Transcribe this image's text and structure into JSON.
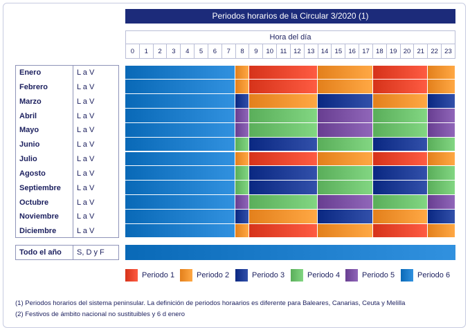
{
  "title": "Periodos horarios de la Circular 3/2020 (1)",
  "hour_label": "Hora del día",
  "hours": [
    "0",
    "1",
    "2",
    "3",
    "4",
    "5",
    "6",
    "7",
    "8",
    "9",
    "10",
    "11",
    "12",
    "13",
    "14",
    "15",
    "16",
    "17",
    "18",
    "19",
    "20",
    "21",
    "22",
    "23"
  ],
  "months": [
    {
      "name": "Enero",
      "days": "L a V",
      "periods": [
        6,
        6,
        6,
        6,
        6,
        6,
        6,
        6,
        2,
        1,
        1,
        1,
        1,
        1,
        2,
        2,
        2,
        2,
        1,
        1,
        1,
        1,
        2,
        2
      ]
    },
    {
      "name": "Febrero",
      "days": "L a V",
      "periods": [
        6,
        6,
        6,
        6,
        6,
        6,
        6,
        6,
        2,
        1,
        1,
        1,
        1,
        1,
        2,
        2,
        2,
        2,
        1,
        1,
        1,
        1,
        2,
        2
      ]
    },
    {
      "name": "Marzo",
      "days": "L a V",
      "periods": [
        6,
        6,
        6,
        6,
        6,
        6,
        6,
        6,
        3,
        2,
        2,
        2,
        2,
        2,
        3,
        3,
        3,
        3,
        2,
        2,
        2,
        2,
        3,
        3
      ]
    },
    {
      "name": "Abril",
      "days": "L a V",
      "periods": [
        6,
        6,
        6,
        6,
        6,
        6,
        6,
        6,
        5,
        4,
        4,
        4,
        4,
        4,
        5,
        5,
        5,
        5,
        4,
        4,
        4,
        4,
        5,
        5
      ]
    },
    {
      "name": "Mayo",
      "days": "L a V",
      "periods": [
        6,
        6,
        6,
        6,
        6,
        6,
        6,
        6,
        5,
        4,
        4,
        4,
        4,
        4,
        5,
        5,
        5,
        5,
        4,
        4,
        4,
        4,
        5,
        5
      ]
    },
    {
      "name": "Junio",
      "days": "L a V",
      "periods": [
        6,
        6,
        6,
        6,
        6,
        6,
        6,
        6,
        4,
        3,
        3,
        3,
        3,
        3,
        4,
        4,
        4,
        4,
        3,
        3,
        3,
        3,
        4,
        4
      ]
    },
    {
      "name": "Julio",
      "days": "L a V",
      "periods": [
        6,
        6,
        6,
        6,
        6,
        6,
        6,
        6,
        2,
        1,
        1,
        1,
        1,
        1,
        2,
        2,
        2,
        2,
        1,
        1,
        1,
        1,
        2,
        2
      ]
    },
    {
      "name": "Agosto",
      "days": "L a V",
      "periods": [
        6,
        6,
        6,
        6,
        6,
        6,
        6,
        6,
        4,
        3,
        3,
        3,
        3,
        3,
        4,
        4,
        4,
        4,
        3,
        3,
        3,
        3,
        4,
        4
      ]
    },
    {
      "name": "Septiembre",
      "days": "L a V",
      "periods": [
        6,
        6,
        6,
        6,
        6,
        6,
        6,
        6,
        4,
        3,
        3,
        3,
        3,
        3,
        4,
        4,
        4,
        4,
        3,
        3,
        3,
        3,
        4,
        4
      ]
    },
    {
      "name": "Octubre",
      "days": "L a V",
      "periods": [
        6,
        6,
        6,
        6,
        6,
        6,
        6,
        6,
        5,
        4,
        4,
        4,
        4,
        4,
        5,
        5,
        5,
        5,
        4,
        4,
        4,
        4,
        5,
        5
      ]
    },
    {
      "name": "Noviembre",
      "days": "L a V",
      "periods": [
        6,
        6,
        6,
        6,
        6,
        6,
        6,
        6,
        3,
        2,
        2,
        2,
        2,
        2,
        3,
        3,
        3,
        3,
        2,
        2,
        2,
        2,
        3,
        3
      ]
    },
    {
      "name": "Diciembre",
      "days": "L a V",
      "periods": [
        6,
        6,
        6,
        6,
        6,
        6,
        6,
        6,
        2,
        1,
        1,
        1,
        1,
        1,
        2,
        2,
        2,
        2,
        1,
        1,
        1,
        1,
        2,
        2
      ]
    }
  ],
  "year_row": {
    "name": "Todo el año",
    "days": "S, D y F",
    "period": 6
  },
  "legend": [
    {
      "label": "Periodo 1",
      "color": "#e8452c"
    },
    {
      "label": "Periodo 2",
      "color": "#f5922e"
    },
    {
      "label": "Periodo 3",
      "color": "#1c3a94"
    },
    {
      "label": "Periodo 4",
      "color": "#6cc06c"
    },
    {
      "label": "Periodo 5",
      "color": "#7a50a3"
    },
    {
      "label": "Periodo 6",
      "color": "#1b7bc9"
    }
  ],
  "notes": [
    "(1) Periodos horarios del sistema peninsular. La definición de periodos horaarios es diferente para Baleares, Canarias, Ceuta y Melilla",
    "(2) Festivos de ámbito nacional no sustituibles y 6 d enero"
  ]
}
